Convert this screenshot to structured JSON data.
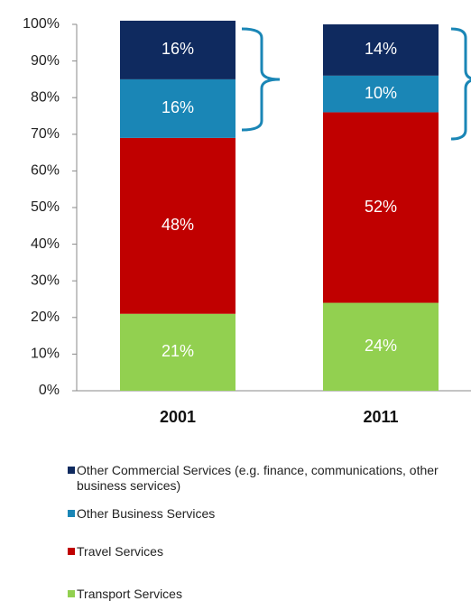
{
  "chart_data": {
    "type": "stacked_bar",
    "categories": [
      "2001",
      "2011"
    ],
    "series": [
      {
        "name": "Other Commercial Services (e.g. finance, communications, other business services)",
        "color": "#0f2a5f",
        "values": [
          16,
          14
        ],
        "value_labels": [
          "16%",
          "14%"
        ]
      },
      {
        "name": "Other Business Services",
        "color": "#1a86b6",
        "values": [
          16,
          10
        ],
        "value_labels": [
          "16%",
          "10%"
        ]
      },
      {
        "name": "Travel Services",
        "color": "#c00000",
        "values": [
          48,
          52
        ],
        "value_labels": [
          "48%",
          "52%"
        ]
      },
      {
        "name": "Transport Services",
        "color": "#92d050",
        "values": [
          21,
          24
        ],
        "value_labels": [
          "21%",
          "24%"
        ]
      }
    ],
    "ylim": [
      0,
      100
    ],
    "yticks": [
      {
        "value": 0,
        "label": "0%"
      },
      {
        "value": 10,
        "label": "10%"
      },
      {
        "value": 20,
        "label": "20%"
      },
      {
        "value": 30,
        "label": "30%"
      },
      {
        "value": 40,
        "label": "40%"
      },
      {
        "value": 50,
        "label": "50%"
      },
      {
        "value": 60,
        "label": "60%"
      },
      {
        "value": 70,
        "label": "70%"
      },
      {
        "value": 80,
        "label": "80%"
      },
      {
        "value": 90,
        "label": "90%"
      },
      {
        "value": 100,
        "label": "100%"
      }
    ]
  }
}
